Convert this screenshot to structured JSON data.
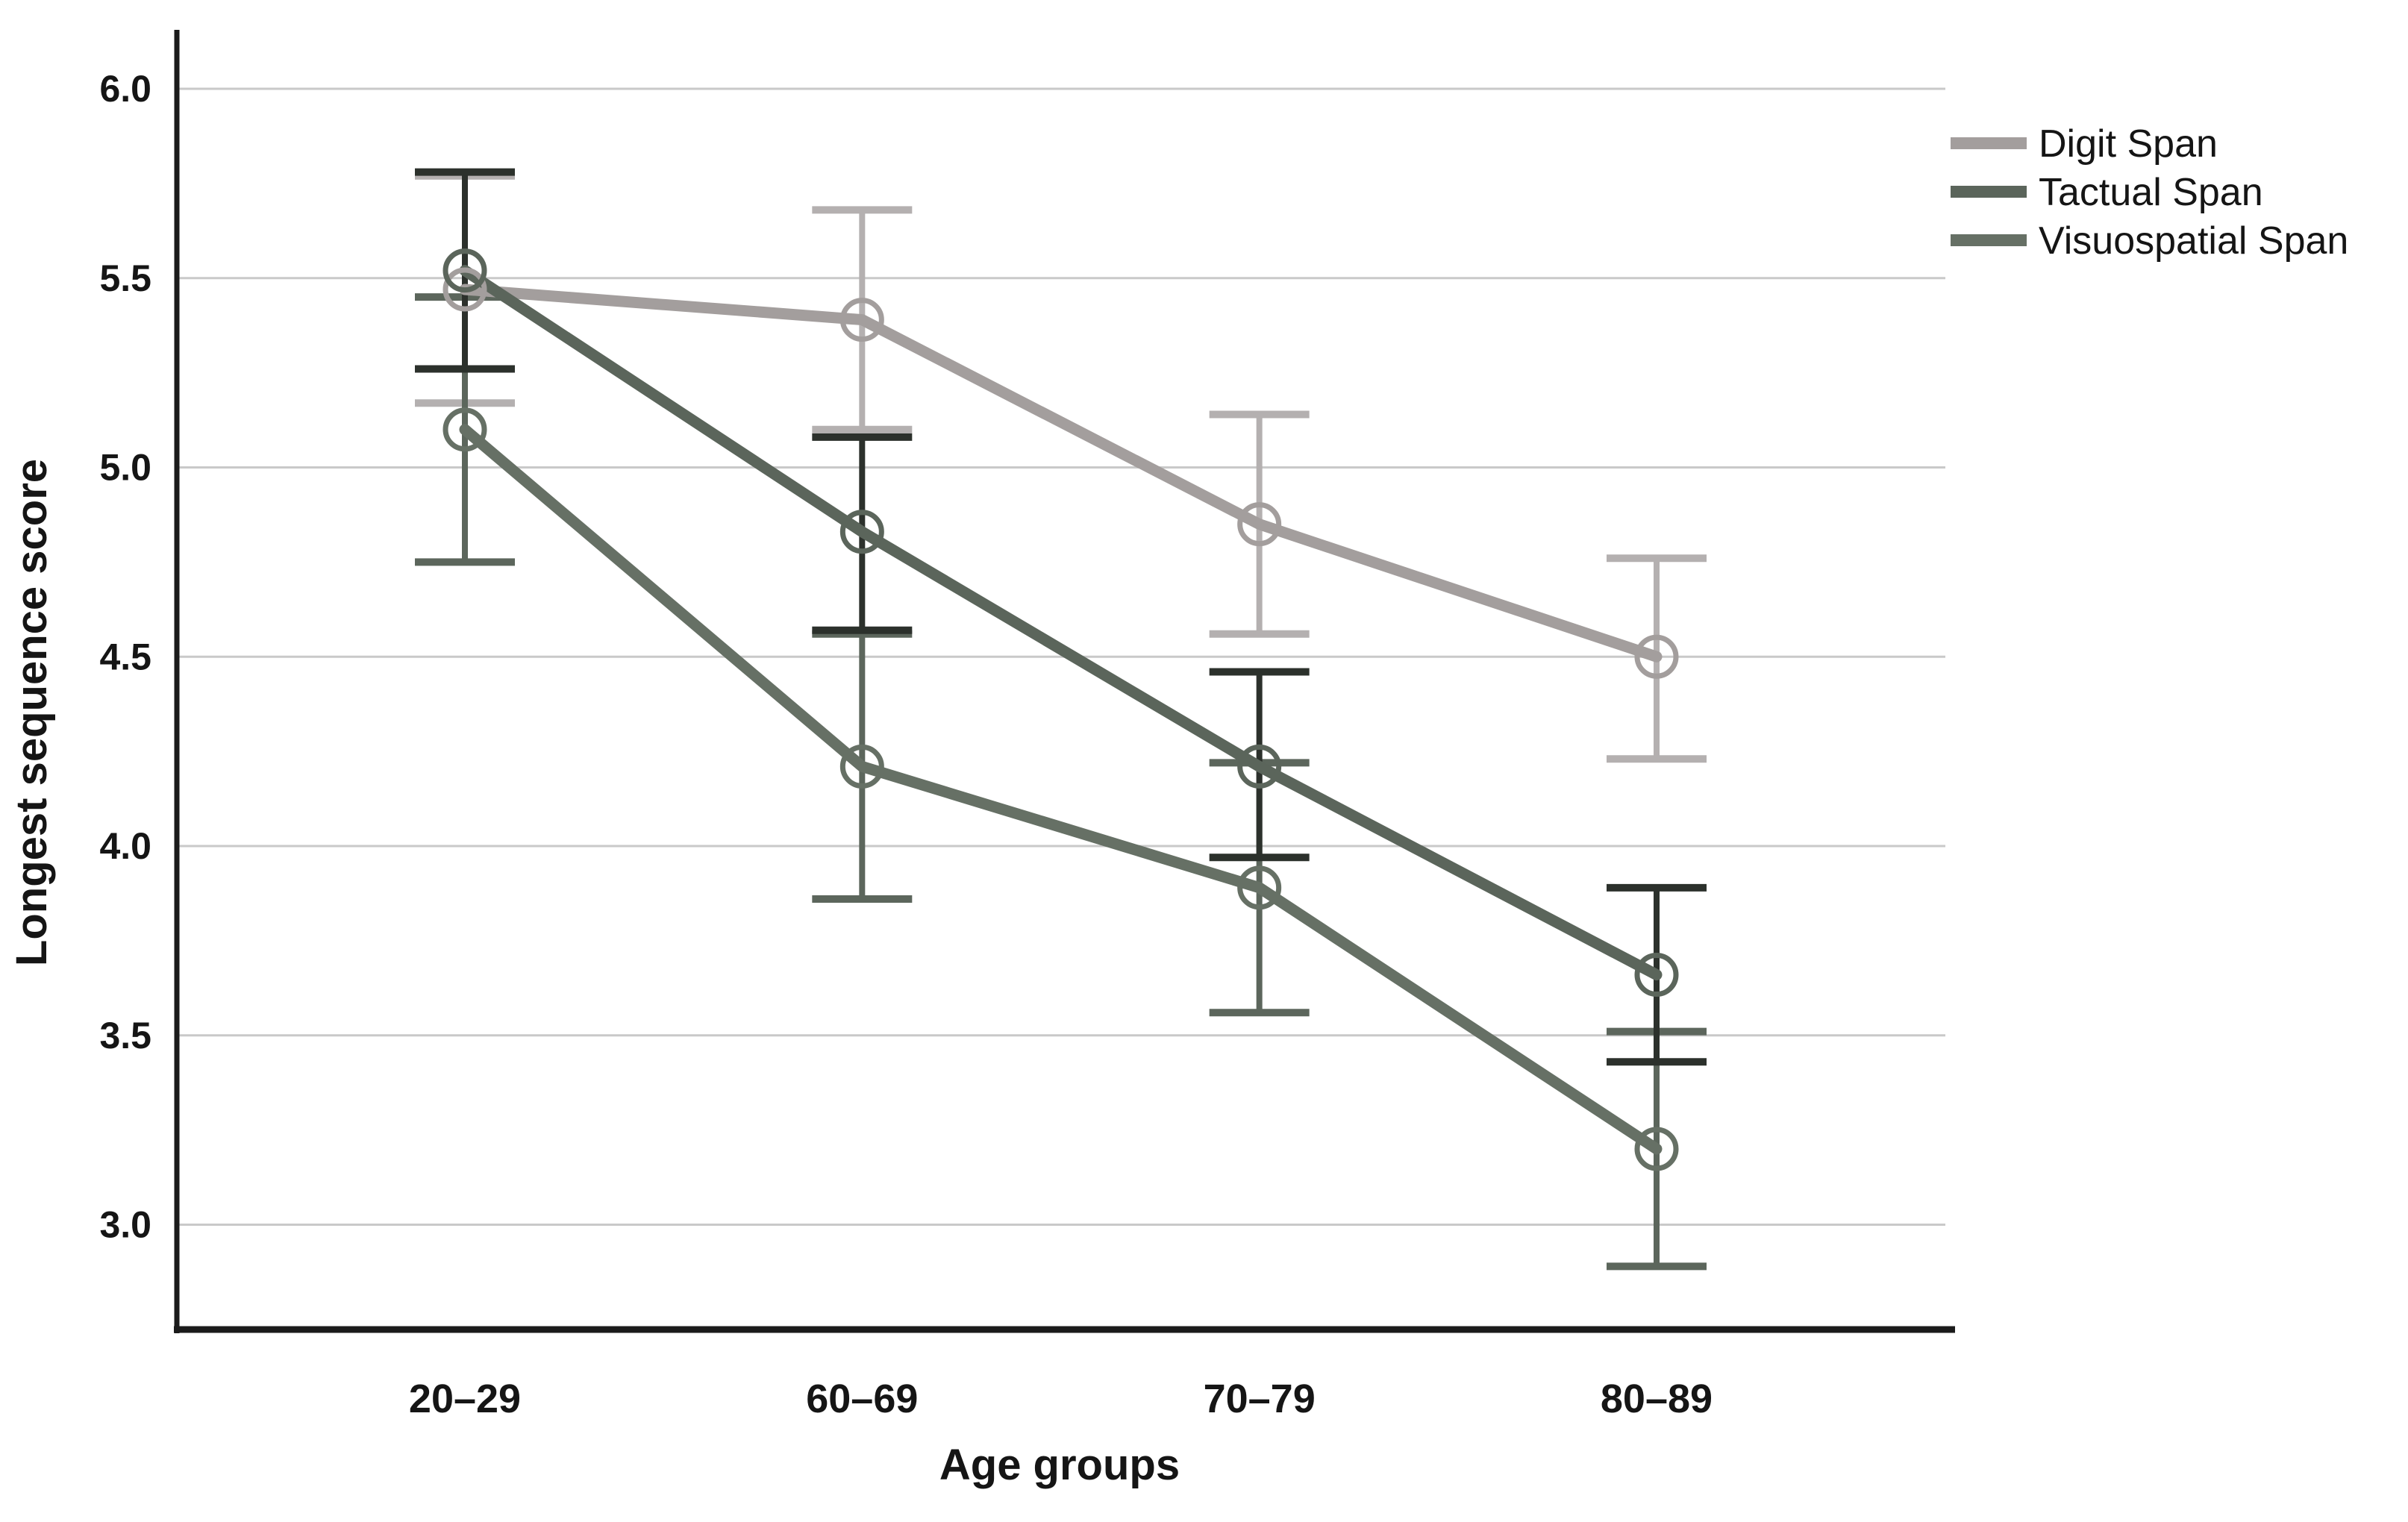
{
  "chart_data": {
    "type": "line",
    "title": "",
    "xlabel": "Age groups",
    "ylabel": "Longest sequence score",
    "categories": [
      "20–29",
      "60–69",
      "70–79",
      "80–89"
    ],
    "y_ticks": [
      {
        "label": "6.0",
        "value": 6.0
      },
      {
        "label": "5.5",
        "value": 5.5
      },
      {
        "label": "5.0",
        "value": 5.0
      },
      {
        "label": "4.5",
        "value": 4.5
      },
      {
        "label": "4.0",
        "value": 4.0
      },
      {
        "label": "3.5",
        "value": 3.5
      },
      {
        "label": "3.0",
        "value": 3.0
      }
    ],
    "ylim": [
      2.72,
      6.13
    ],
    "grid": true,
    "grid_color": "#c9c9c9",
    "axis_color": "#1b1b1b",
    "legend_position": "top-right",
    "marker": "open-circle",
    "series": [
      {
        "name": "Digit Span",
        "color": "#a39e9d",
        "err_color": "#b4b0b0",
        "values": [
          5.47,
          5.39,
          4.85,
          4.5
        ],
        "ci_low": [
          5.17,
          5.1,
          4.56,
          4.23
        ],
        "ci_high": [
          5.77,
          5.68,
          5.14,
          4.76
        ]
      },
      {
        "name": "Tactual Span",
        "color": "#5b655b",
        "err_color": "#2c312c",
        "values": [
          5.52,
          4.83,
          4.21,
          3.66
        ],
        "ci_low": [
          5.26,
          4.57,
          3.97,
          3.43
        ],
        "ci_high": [
          5.78,
          5.08,
          4.46,
          3.89
        ]
      },
      {
        "name": "Visuospatial Span",
        "color": "#667065",
        "err_color": "#5c665c",
        "values": [
          5.1,
          4.21,
          3.89,
          3.2
        ],
        "ci_low": [
          4.75,
          3.86,
          3.56,
          2.89
        ],
        "ci_high": [
          5.45,
          4.56,
          4.22,
          3.51
        ]
      }
    ]
  }
}
